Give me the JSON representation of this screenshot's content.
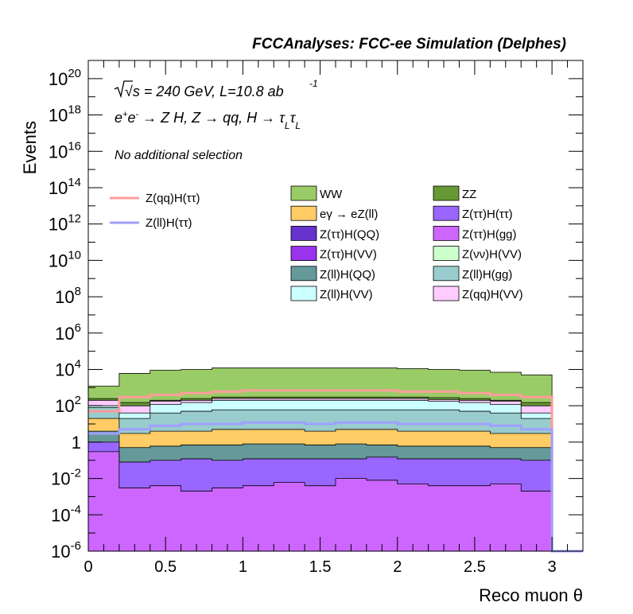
{
  "header": {
    "title": "FCCAnalyses: FCC-ee Simulation (Delphes)"
  },
  "annotations": {
    "energy": "√s = 240 GeV, L=10.8 ab",
    "energy_sup": "-1",
    "process": "e+e- → Z H, Z → qq, H → τLτL",
    "selection": "No additional selection"
  },
  "chart_data": {
    "type": "area",
    "title": "FCCAnalyses: FCC-ee Simulation (Delphes)",
    "xlabel": "Reco muon θ",
    "ylabel": "Events",
    "xlim": [
      0,
      3.2
    ],
    "ylim": [
      1e-06,
      1e+21
    ],
    "log_y": true,
    "x_ticks": [
      "0",
      "0.5",
      "1",
      "1.5",
      "2",
      "2.5",
      "3"
    ],
    "y_ticks": [
      "10-6",
      "10-4",
      "10-2",
      "1",
      "102",
      "104",
      "106",
      "108",
      "1010",
      "1012",
      "1014",
      "1016",
      "1018",
      "1020"
    ],
    "bin_edges": [
      0,
      0.2,
      0.4,
      0.6,
      0.8,
      1.0,
      1.2,
      1.4,
      1.6,
      1.8,
      2.0,
      2.2,
      2.4,
      2.6,
      2.8,
      3.0,
      3.2
    ],
    "stacked": true,
    "stack_totals": {
      "Z(ττ)H(gg)": [
        0.3,
        0.003,
        0.004,
        0.002,
        0.003,
        0.004,
        0.006,
        0.004,
        0.01,
        0.008,
        0.005,
        0.004,
        0.004,
        0.005,
        0.002,
        0.0,
        0.0
      ],
      "Z(ττ)H(ττ)": [
        1,
        0.08,
        0.1,
        0.12,
        0.1,
        0.12,
        0.12,
        0.12,
        0.12,
        0.15,
        0.12,
        0.12,
        0.12,
        0.12,
        0.1,
        0.0,
        0.0
      ],
      "Z(ll)H(QQ)": [
        4,
        0.5,
        0.6,
        0.7,
        0.7,
        0.8,
        0.8,
        0.7,
        0.8,
        0.7,
        0.6,
        0.6,
        0.6,
        0.5,
        0.5,
        0.0,
        0.0
      ],
      "eγ → eZ(ll)": [
        20,
        3,
        4,
        4,
        5,
        5,
        5,
        4,
        5,
        5,
        4,
        4,
        4,
        3,
        3,
        0.0,
        0.0
      ],
      "Z(ll)H(gg)": [
        80,
        20,
        40,
        50,
        60,
        60,
        60,
        60,
        60,
        60,
        60,
        60,
        50,
        40,
        20,
        0.0,
        0.0
      ],
      "Z(ll)H(VV)": [
        100,
        40,
        120,
        150,
        200,
        200,
        200,
        200,
        200,
        200,
        200,
        180,
        150,
        120,
        40,
        0.0,
        0.0
      ],
      "Z(qq)H(VV)": [
        200,
        100,
        180,
        200,
        250,
        250,
        250,
        250,
        250,
        250,
        250,
        220,
        200,
        180,
        100,
        0.0,
        0.0
      ],
      "ZZ": [
        250,
        150,
        200,
        250,
        300,
        300,
        300,
        300,
        300,
        300,
        300,
        280,
        250,
        200,
        150,
        0.0,
        0.0
      ],
      "WW": [
        1200,
        6000,
        9000,
        10000,
        12000,
        12000,
        12000,
        12000,
        12000,
        12000,
        11000,
        10000,
        9000,
        7000,
        5000,
        0.0,
        0.0
      ]
    },
    "lines": [
      {
        "name": "Z(qq)H(ττ)",
        "color": "#ff9c9c",
        "values": [
          50,
          300,
          400,
          500,
          600,
          700,
          700,
          700,
          700,
          700,
          600,
          600,
          500,
          400,
          300,
          0.0,
          0.0
        ]
      },
      {
        "name": "Z(ll)H(ττ)",
        "color": "#a0a0ff",
        "values": [
          3,
          5,
          8,
          10,
          10,
          12,
          12,
          10,
          12,
          12,
          10,
          10,
          10,
          8,
          5,
          0.0,
          0.0
        ]
      }
    ],
    "legend": {
      "lines": [
        {
          "label": "Z(qq)H(ττ)",
          "color": "#ff9c9c"
        },
        {
          "label": "Z(ll)H(ττ)",
          "color": "#a0a0ff"
        }
      ],
      "col1": [
        {
          "label": "WW",
          "color": "#99cc66"
        },
        {
          "label": "eγ → eZ(ll)",
          "color": "#ffcc66"
        },
        {
          "label": "Z(ττ)H(QQ)",
          "color": "#6633cc"
        },
        {
          "label": "Z(ττ)H(VV)",
          "color": "#9933ee"
        },
        {
          "label": "Z(ll)H(QQ)",
          "color": "#669999"
        },
        {
          "label": "Z(ll)H(VV)",
          "color": "#ccffff"
        }
      ],
      "col2": [
        {
          "label": "ZZ",
          "color": "#669933"
        },
        {
          "label": "Z(ττ)H(ττ)",
          "color": "#9966ff"
        },
        {
          "label": "Z(ττ)H(gg)",
          "color": "#cc66ff"
        },
        {
          "label": "Z(νν)H(VV)",
          "color": "#ccffcc"
        },
        {
          "label": "Z(ll)H(gg)",
          "color": "#99cccc"
        },
        {
          "label": "Z(qq)H(VV)",
          "color": "#ffccff"
        }
      ]
    },
    "grid": false
  }
}
